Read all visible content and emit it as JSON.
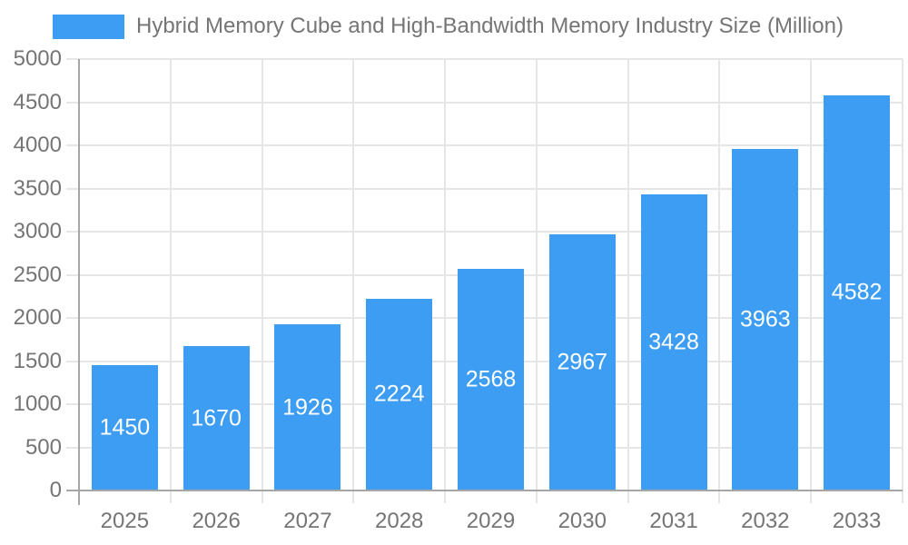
{
  "chart_data": {
    "type": "bar",
    "title": "Hybrid Memory Cube and High-Bandwidth Memory Industry Size (Million)",
    "categories": [
      "2025",
      "2026",
      "2027",
      "2028",
      "2029",
      "2030",
      "2031",
      "2032",
      "2033"
    ],
    "values": [
      1450,
      1670,
      1926,
      2224,
      2568,
      2967,
      3428,
      3963,
      4582
    ],
    "xlabel": "",
    "ylabel": "",
    "ylim": [
      0,
      5000
    ],
    "ytick_step": 500,
    "ytick_labels": [
      "0",
      "500",
      "1000",
      "1500",
      "2000",
      "2500",
      "3000",
      "3500",
      "4000",
      "4500",
      "5000"
    ],
    "grid": true,
    "legend_position": "top-left",
    "value_labels": "inside-bar-centered",
    "colors": {
      "bar": "#3D9DF2",
      "grid": "#E6E6E6",
      "axis": "#A6A6A6",
      "tick_label": "#757575",
      "title": "#757575",
      "value_label": "#FFFFFF",
      "background": "#FFFFFF"
    }
  }
}
